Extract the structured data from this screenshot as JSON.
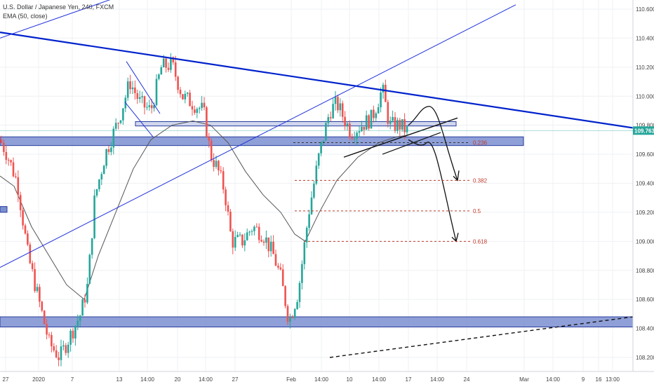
{
  "chart_data": {
    "type": "candlestick",
    "title": "U.S. Dollar / Japanese Yen, 240, FXCM",
    "indicator": "EMA (50, close)",
    "ylim": [
      108.12,
      110.68
    ],
    "price_ticks": [
      108.2,
      108.4,
      108.6,
      108.8,
      109.0,
      109.2,
      109.4,
      109.6,
      109.8,
      110.0,
      110.2,
      110.4,
      110.6
    ],
    "price_tick_labels": [
      "108.200",
      "108.400",
      "108.600",
      "108.800",
      "109.000",
      "109.200",
      "109.400",
      "109.600",
      "109.800",
      "110.000",
      "110.200",
      "110.400",
      "110.600"
    ],
    "last_price": 109.763,
    "last_price_label": "109.763",
    "time_ticks": [
      {
        "label": "27",
        "x": 8
      },
      {
        "label": "2020",
        "x": 55
      },
      {
        "label": "7",
        "x": 103
      },
      {
        "label": "13",
        "x": 170
      },
      {
        "label": "14:00",
        "x": 210
      },
      {
        "label": "20",
        "x": 253
      },
      {
        "label": "14:00",
        "x": 293
      },
      {
        "label": "27",
        "x": 335
      },
      {
        "label": "Feb",
        "x": 415
      },
      {
        "label": "14:00",
        "x": 458
      },
      {
        "label": "10",
        "x": 498
      },
      {
        "label": "14:00",
        "x": 540
      },
      {
        "label": "17",
        "x": 582
      },
      {
        "label": "14:00",
        "x": 623
      },
      {
        "label": "24",
        "x": 665
      },
      {
        "label": "Mar",
        "x": 747
      },
      {
        "label": "14:00",
        "x": 788
      },
      {
        "label": "9",
        "x": 831
      },
      {
        "label": "16",
        "x": 853
      },
      {
        "label": "13:00",
        "x": 873
      }
    ],
    "fib_levels": [
      {
        "label": "0.236",
        "value": 109.68
      },
      {
        "label": "0.382",
        "value": 109.42
      },
      {
        "label": "0.5",
        "value": 109.21
      },
      {
        "label": "0.618",
        "value": 109.0
      }
    ],
    "support_zones": [
      {
        "y_top": 109.72,
        "y_bottom": 109.66
      },
      {
        "y_top": 108.48,
        "y_bottom": 108.41
      }
    ],
    "resistance_zone": {
      "y_top": 109.825,
      "y_bottom": 109.795
    },
    "colors": {
      "up": "#26a69a",
      "down": "#ef5350",
      "trendline": "#0022cc",
      "zone_fill": "#7b8ed0",
      "zone_stroke": "#2a3f9e",
      "fib": "#c0392b",
      "ema": "#555555",
      "last_price_bg": "#26a69a"
    }
  }
}
